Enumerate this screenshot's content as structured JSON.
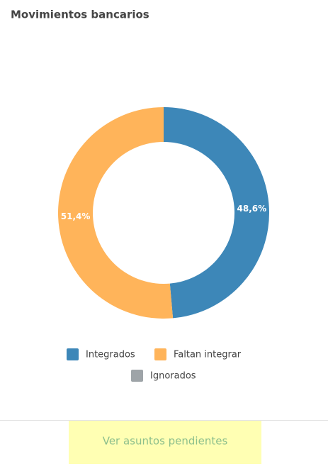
{
  "chart_data": {
    "type": "pie",
    "title": "Movimientos bancarios",
    "categories": [
      "Integrados",
      "Faltan integrar",
      "Ignorados"
    ],
    "values": [
      48.6,
      51.4,
      0
    ],
    "value_labels": [
      "48,6%",
      "51,4%",
      null
    ],
    "colors": [
      "#3d87b8",
      "#ffb45a",
      "#9ea4a8"
    ],
    "donut": true,
    "legend": "bottom"
  },
  "footer": {
    "button": "Ver asuntos pendientes"
  }
}
